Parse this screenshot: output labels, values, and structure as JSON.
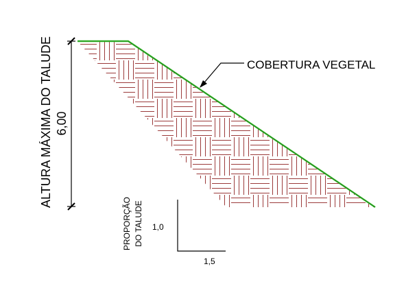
{
  "diagram": {
    "height_axis_label": "ALTURA MÁXIMA DO TALUDE",
    "height_value": "6,00",
    "cover_callout_label": "COBERTURA VEGETAL",
    "slope_ratio_label": "PROPORÇÃO DO TALUDE",
    "slope_ratio_label_line1": "PROPORÇÃO",
    "slope_ratio_label_line2": "DO TALUDE",
    "ratio_vertical": "1,0",
    "ratio_horizontal": "1,5"
  },
  "colors": {
    "hatch": "#9b3a3a",
    "vegetation": "#39c22f",
    "lines": "#000000",
    "background": "#ffffff"
  }
}
